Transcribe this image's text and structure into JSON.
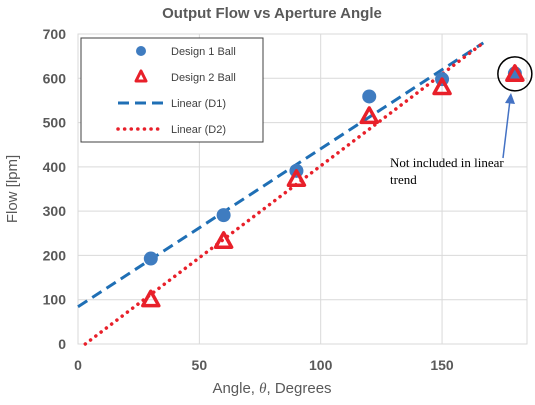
{
  "chart_data": {
    "type": "scatter",
    "title": "Output Flow vs Aperture Angle",
    "xlabel_prefix": "Angle, ",
    "xlabel_symbol": "θ",
    "xlabel_suffix": ", Degrees",
    "ylabel": "Flow [lpm]",
    "xlim": [
      0,
      185
    ],
    "ylim": [
      0,
      700
    ],
    "xticks": [
      0,
      50,
      100,
      150
    ],
    "yticks": [
      0,
      100,
      200,
      300,
      400,
      500,
      600,
      700
    ],
    "grid": true,
    "legend_position": "top-left",
    "series": [
      {
        "name": "Design 1 Ball",
        "marker": "circle",
        "color": "#3F7CC0",
        "x": [
          30,
          60,
          90,
          120,
          150,
          180
        ],
        "y": [
          193,
          291,
          391,
          559,
          598,
          611
        ]
      },
      {
        "name": "Design 2 Ball",
        "marker": "triangle",
        "color": "#E8202A",
        "x": [
          30,
          60,
          90,
          120,
          150,
          180
        ],
        "y": [
          101,
          233,
          373,
          515,
          580,
          610
        ]
      }
    ],
    "trendlines": [
      {
        "name": "Linear (D1)",
        "style": "dashed",
        "color": "#1F6FB5",
        "x": [
          0,
          167
        ],
        "y": [
          84,
          680
        ]
      },
      {
        "name": "Linear (D2)",
        "style": "dotted",
        "color": "#E8202A",
        "x": [
          3,
          167
        ],
        "y": [
          0,
          680
        ]
      }
    ],
    "annotation": {
      "text_line1": "Not included in linear",
      "text_line2": "trend",
      "target_x": 180,
      "target_y": 610
    }
  }
}
